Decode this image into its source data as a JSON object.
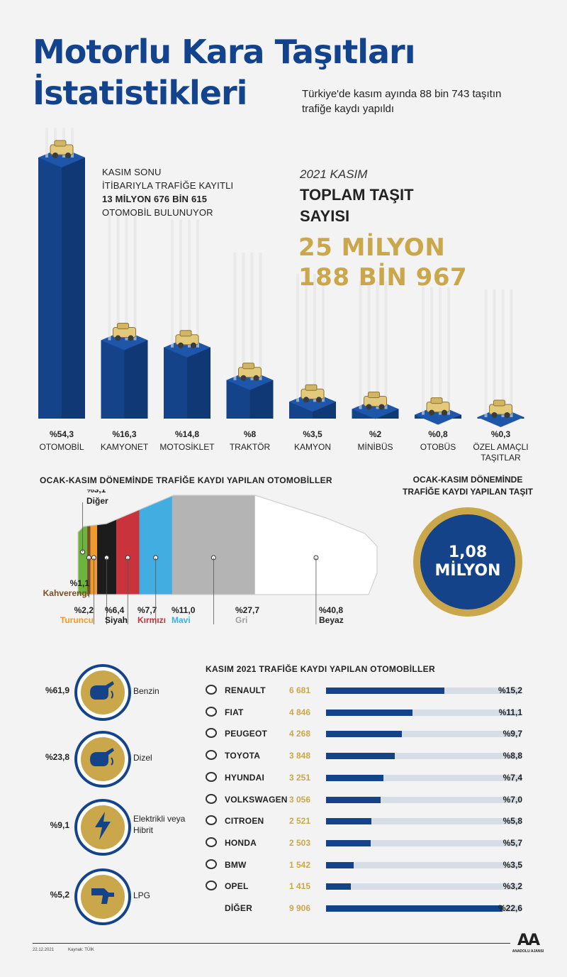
{
  "header": {
    "title_line1": "Motorlu Kara Taşıtları",
    "title_line2": "İstatistikleri",
    "subtitle": "Türkiye'de kasım ayında 88 bin 743 taşıtın trafiğe kaydı yapıldı"
  },
  "note": {
    "line1": "KASIM SONU",
    "line2": "İTİBARIYLA TRAFİĞE KAYITLI",
    "line3_bold": "13 MİLYON 676 BİN 615",
    "line4": "OTOMOBİL BULUNUYOR"
  },
  "total": {
    "label1": "2021 KASIM",
    "label2": "TOPLAM TAŞIT SAYISI",
    "value_line1": "25 MİLYON",
    "value_line2": "188 BİN 967"
  },
  "chart_data": [
    {
      "type": "bar",
      "categories": [
        "OTOMOBİL",
        "KAMYONET",
        "MOTOSİKLET",
        "TRAKTÖR",
        "KAMYON",
        "MİNİBÜS",
        "OTOBÜS",
        "ÖZEL AMAÇLI TAŞITLAR"
      ],
      "values": [
        54.3,
        16.3,
        14.8,
        8,
        3.5,
        2,
        0.8,
        0.3
      ],
      "value_labels": [
        "%54,3",
        "%16,3",
        "%14,8",
        "%8",
        "%3,5",
        "%2",
        "%0,8",
        "%0,3"
      ],
      "icons": [
        "car-icon",
        "van-icon",
        "motorcycle-icon",
        "tractor-icon",
        "truck-icon",
        "minibus-icon",
        "bus-icon",
        "special-vehicle-icon"
      ]
    },
    {
      "type": "bar",
      "title": "OCAK-KASIM DÖNEMİNDE TRAFİĞE KAYDI YAPILAN OTOMOBİLLER",
      "categories": [
        "Diğer",
        "Kahverengi",
        "Turuncu",
        "Siyah",
        "Kırmızı",
        "Mavi",
        "Gri",
        "Beyaz"
      ],
      "values": [
        3.1,
        1.1,
        2.2,
        6.4,
        7.7,
        11.0,
        27.7,
        40.8
      ],
      "value_labels": [
        "%3,1",
        "%1,1",
        "%2,2",
        "%6,4",
        "%7,7",
        "%11,0",
        "%27,7",
        "%40,8"
      ],
      "colors": [
        "#6bb43e",
        "#7a4e20",
        "#f2992e",
        "#1c1c1c",
        "#c8333c",
        "#41ade1",
        "#b4b4b4",
        "#ffffff"
      ],
      "label_colors": [
        "#222222",
        "#7a4e20",
        "#f2992e",
        "#1c1c1c",
        "#c8333c",
        "#41ade1",
        "#a0a0a0",
        "#222222"
      ]
    },
    {
      "type": "pie",
      "categories": [
        "Benzin",
        "Dizel",
        "Elektrikli veya Hibrit",
        "LPG"
      ],
      "values": [
        61.9,
        23.8,
        9.1,
        5.2
      ],
      "value_labels": [
        "%61,9",
        "%23,8",
        "%9,1",
        "%5,2"
      ],
      "icons": [
        "fuel-nozzle-icon",
        "fuel-nozzle-icon",
        "lightning-icon",
        "lpg-nozzle-icon"
      ]
    },
    {
      "type": "bar",
      "title": "KASIM 2021 TRAFİĞE KAYDI YAPILAN OTOMOBİLLER",
      "categories": [
        "RENAULT",
        "FIAT",
        "PEUGEOT",
        "TOYOTA",
        "HYUNDAI",
        "VOLKSWAGEN",
        "CITROEN",
        "HONDA",
        "BMW",
        "OPEL",
        "DİĞER"
      ],
      "values": [
        6681,
        4846,
        4268,
        3848,
        3251,
        3056,
        2521,
        2503,
        1542,
        1415,
        9906
      ],
      "count_labels": [
        "6 681",
        "4 846",
        "4 268",
        "3 848",
        "3 251",
        "3 056",
        "2 521",
        "2 503",
        "1 542",
        "1 415",
        "9 906"
      ],
      "shares": [
        15.2,
        11.1,
        9.7,
        8.8,
        7.4,
        7.0,
        5.8,
        5.7,
        3.5,
        3.2,
        22.6
      ],
      "share_labels": [
        "%15,2",
        "%11,1",
        "%9,7",
        "%8,8",
        "%7,4",
        "%7,0",
        "%5,8",
        "%5,7",
        "%3,5",
        "%3,2",
        "%22,6"
      ],
      "icons": [
        "renault-logo-icon",
        "fiat-logo-icon",
        "peugeot-logo-icon",
        "toyota-logo-icon",
        "hyundai-logo-icon",
        "volkswagen-logo-icon",
        "citroen-logo-icon",
        "honda-logo-icon",
        "bmw-logo-icon",
        "opel-logo-icon",
        ""
      ]
    }
  ],
  "sections": {
    "colors_title": "OCAK-KASIM DÖNEMİNDE TRAFİĞE KAYDI YAPILAN OTOMOBİLLER",
    "total_title_line1": "OCAK-KASIM DÖNEMİNDE",
    "total_title_line2": "TRAFİĞE KAYDI YAPILAN TAŞIT",
    "total_value_line1": "1,08",
    "total_value_line2": "MİLYON",
    "brands_title": "KASIM 2021 TRAFİĞE KAYDI YAPILAN OTOMOBİLLER"
  },
  "footer": {
    "date": "22.12.2021",
    "source": "Kaynak: TÜİK",
    "logo_text": "ANADOLU AJANSI",
    "logo_mark": "AA"
  },
  "palette": {
    "navy": "#14438a",
    "gold": "#c9a74a",
    "track": "#d7dde6"
  }
}
